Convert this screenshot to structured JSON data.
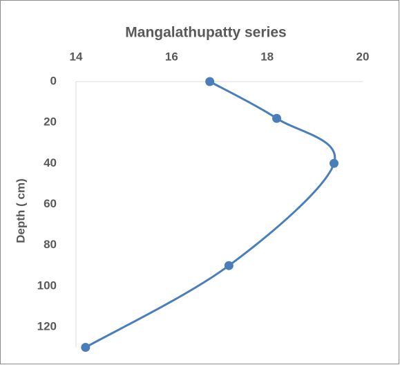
{
  "chart_data": {
    "type": "line",
    "smooth": true,
    "title": "Mangalathupatty series",
    "y_label": "Depth ( cm)",
    "x": [
      16.8,
      18.2,
      19.4,
      17.2,
      14.2
    ],
    "values": [
      0,
      18,
      40,
      90,
      130
    ],
    "color": "#4a7ebb",
    "xlim": [
      14,
      20
    ],
    "xticks": [
      14,
      16,
      18,
      20
    ],
    "ylim": [
      0,
      130
    ],
    "yticks": [
      0,
      20,
      40,
      60,
      80,
      100,
      120
    ],
    "y_inverted": true,
    "x_axis_position": "top",
    "grid": false
  }
}
